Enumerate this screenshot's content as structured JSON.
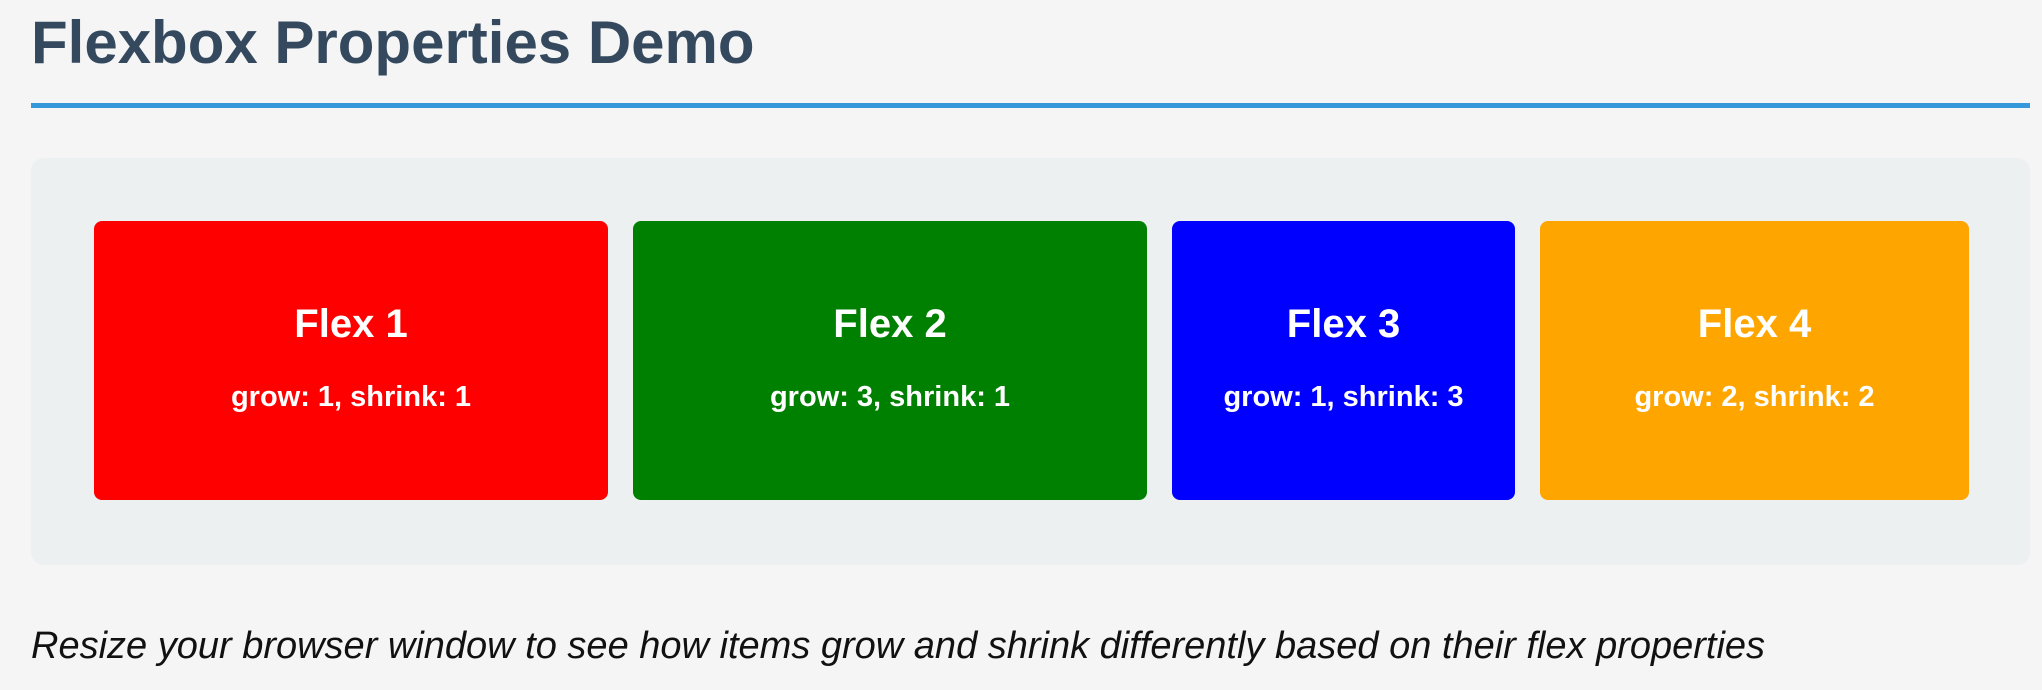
{
  "page": {
    "title": "Flexbox Properties Demo",
    "note": "Resize your browser window to see how items grow and shrink differently based on their flex properties"
  },
  "colors": {
    "title_text": "#34495e",
    "title_rule": "#3498db",
    "page_background": "#f5f5f5",
    "container_background": "#ecf0f1"
  },
  "flex_items": [
    {
      "title": "Flex 1",
      "description": "grow: 1, shrink: 1",
      "color": "#ff0000"
    },
    {
      "title": "Flex 2",
      "description": "grow: 3, shrink: 1",
      "color": "#008000"
    },
    {
      "title": "Flex 3",
      "description": "grow: 1, shrink: 3",
      "color": "#0000ff"
    },
    {
      "title": "Flex 4",
      "description": "grow: 2, shrink: 2",
      "color": "#ffa500"
    }
  ]
}
